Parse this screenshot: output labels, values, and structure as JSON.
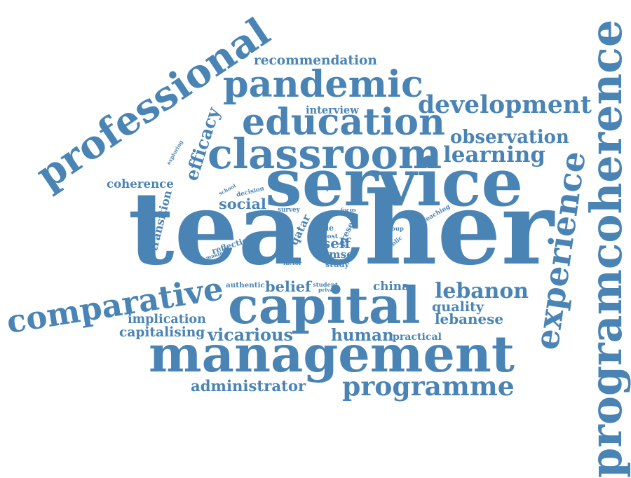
{
  "accent_color": "#4a84b5",
  "words": [
    {
      "text": "teacher",
      "weight": 100
    },
    {
      "text": "service",
      "weight": 52
    },
    {
      "text": "capital",
      "weight": 48
    },
    {
      "text": "management",
      "weight": 44
    },
    {
      "text": "programcoherence",
      "weight": 44
    },
    {
      "text": "professional",
      "weight": 40
    },
    {
      "text": "comparative",
      "weight": 36
    },
    {
      "text": "pandemic",
      "weight": 34
    },
    {
      "text": "education",
      "weight": 34
    },
    {
      "text": "classroom",
      "weight": 32
    },
    {
      "text": "experience",
      "weight": 28
    },
    {
      "text": "programme",
      "weight": 26
    },
    {
      "text": "efficacy",
      "weight": 24
    },
    {
      "text": "development",
      "weight": 22
    },
    {
      "text": "lebanon",
      "weight": 18
    },
    {
      "text": "vicarious",
      "weight": 15
    },
    {
      "text": "learning",
      "weight": 14
    },
    {
      "text": "observation",
      "weight": 14
    },
    {
      "text": "administrator",
      "weight": 12
    },
    {
      "text": "recommendation",
      "weight": 12
    },
    {
      "text": "human",
      "weight": 12
    },
    {
      "text": "implication",
      "weight": 11
    },
    {
      "text": "capitalising",
      "weight": 11
    },
    {
      "text": "belief",
      "weight": 11
    },
    {
      "text": "school",
      "weight": 11
    },
    {
      "text": "social",
      "weight": 11
    },
    {
      "text": "lebanese",
      "weight": 11
    },
    {
      "text": "quality",
      "weight": 11
    },
    {
      "text": "coherence",
      "weight": 10
    },
    {
      "text": "self",
      "weight": 9
    },
    {
      "text": "cmse",
      "weight": 9
    },
    {
      "text": "china",
      "weight": 9
    },
    {
      "text": "practical",
      "weight": 8
    },
    {
      "text": "interview",
      "weight": 8
    },
    {
      "text": "exploring",
      "weight": 7
    },
    {
      "text": "transition",
      "weight": 7
    },
    {
      "text": "reflection",
      "weight": 7
    },
    {
      "text": "qatar",
      "weight": 7
    },
    {
      "text": "present",
      "weight": 7
    },
    {
      "text": "study",
      "weight": 7
    },
    {
      "text": "authentic",
      "weight": 6
    },
    {
      "text": "decision",
      "weight": 5
    },
    {
      "text": "sample",
      "weight": 5
    },
    {
      "text": "survey",
      "weight": 5
    },
    {
      "text": "making",
      "weight": 5
    },
    {
      "text": "role",
      "weight": 5
    },
    {
      "text": "post",
      "weight": 5
    },
    {
      "text": "focus",
      "weight": 4
    },
    {
      "text": "teaching",
      "weight": 5
    },
    {
      "text": "group",
      "weight": 4
    },
    {
      "text": "public",
      "weight": 4
    },
    {
      "text": "factor",
      "weight": 4
    },
    {
      "text": "student",
      "weight": 5
    },
    {
      "text": "private",
      "weight": 5
    }
  ]
}
